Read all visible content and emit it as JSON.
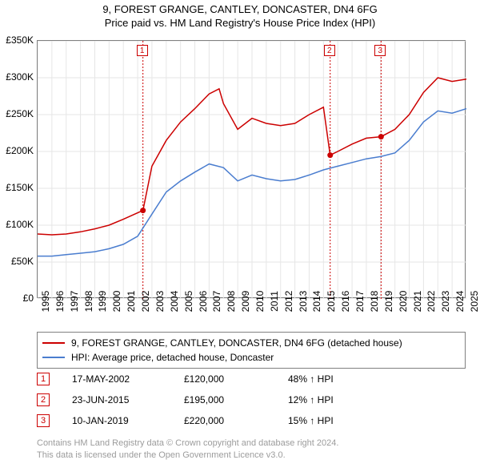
{
  "title": "9, FOREST GRANGE, CANTLEY, DONCASTER, DN4 6FG",
  "subtitle": "Price paid vs. HM Land Registry's House Price Index (HPI)",
  "chart": {
    "type": "line",
    "background_color": "#ffffff",
    "grid_color": "#e6e6e6",
    "axis_color": "#808080",
    "label_fontsize": 12,
    "x_start_year": 1995,
    "x_end_year": 2025,
    "x_ticks": [
      1995,
      1996,
      1997,
      1998,
      1999,
      2000,
      2001,
      2002,
      2003,
      2004,
      2005,
      2006,
      2007,
      2008,
      2009,
      2010,
      2011,
      2012,
      2013,
      2014,
      2015,
      2016,
      2017,
      2018,
      2019,
      2020,
      2021,
      2022,
      2023,
      2024,
      2025
    ],
    "y_min": 0,
    "y_max": 350000,
    "y_tick_step": 50000,
    "y_tick_labels": [
      "£0",
      "£50K",
      "£100K",
      "£150K",
      "£200K",
      "£250K",
      "£300K",
      "£350K"
    ],
    "series": [
      {
        "id": "property",
        "label": "9, FOREST GRANGE, CANTLEY, DONCASTER, DN4 6FG (detached house)",
        "color": "#cc0000",
        "points": [
          [
            1995,
            88000
          ],
          [
            1996,
            87000
          ],
          [
            1997,
            88000
          ],
          [
            1998,
            91000
          ],
          [
            1999,
            95000
          ],
          [
            2000,
            100000
          ],
          [
            2001,
            108000
          ],
          [
            2002.37,
            120000
          ],
          [
            2003,
            180000
          ],
          [
            2004,
            215000
          ],
          [
            2005,
            240000
          ],
          [
            2006,
            258000
          ],
          [
            2007,
            278000
          ],
          [
            2007.7,
            285000
          ],
          [
            2008,
            265000
          ],
          [
            2009,
            230000
          ],
          [
            2010,
            245000
          ],
          [
            2011,
            238000
          ],
          [
            2012,
            235000
          ],
          [
            2013,
            238000
          ],
          [
            2014,
            250000
          ],
          [
            2015,
            260000
          ],
          [
            2015.47,
            195000
          ],
          [
            2016,
            200000
          ],
          [
            2017,
            210000
          ],
          [
            2018,
            218000
          ],
          [
            2019.03,
            220000
          ],
          [
            2020,
            230000
          ],
          [
            2021,
            250000
          ],
          [
            2022,
            280000
          ],
          [
            2023,
            300000
          ],
          [
            2024,
            295000
          ],
          [
            2025,
            298000
          ]
        ]
      },
      {
        "id": "hpi",
        "label": "HPI: Average price, detached house, Doncaster",
        "color": "#4a7dcf",
        "points": [
          [
            1995,
            58000
          ],
          [
            1996,
            58000
          ],
          [
            1997,
            60000
          ],
          [
            1998,
            62000
          ],
          [
            1999,
            64000
          ],
          [
            2000,
            68000
          ],
          [
            2001,
            74000
          ],
          [
            2002,
            85000
          ],
          [
            2003,
            115000
          ],
          [
            2004,
            145000
          ],
          [
            2005,
            160000
          ],
          [
            2006,
            172000
          ],
          [
            2007,
            183000
          ],
          [
            2008,
            178000
          ],
          [
            2009,
            160000
          ],
          [
            2010,
            168000
          ],
          [
            2011,
            163000
          ],
          [
            2012,
            160000
          ],
          [
            2013,
            162000
          ],
          [
            2014,
            168000
          ],
          [
            2015,
            175000
          ],
          [
            2016,
            180000
          ],
          [
            2017,
            185000
          ],
          [
            2018,
            190000
          ],
          [
            2019,
            193000
          ],
          [
            2020,
            198000
          ],
          [
            2021,
            215000
          ],
          [
            2022,
            240000
          ],
          [
            2023,
            255000
          ],
          [
            2024,
            252000
          ],
          [
            2025,
            258000
          ]
        ]
      }
    ],
    "sales": [
      {
        "n": "1",
        "year": 2002.37,
        "price": 120000,
        "date": "17-MAY-2002",
        "price_label": "£120,000",
        "delta": "48% ↑ HPI"
      },
      {
        "n": "2",
        "year": 2015.47,
        "price": 195000,
        "date": "23-JUN-2015",
        "price_label": "£195,000",
        "delta": "12% ↑ HPI"
      },
      {
        "n": "3",
        "year": 2019.03,
        "price": 220000,
        "date": "10-JAN-2019",
        "price_label": "£220,000",
        "delta": "15% ↑ HPI"
      }
    ],
    "marker_color": "#cc0000"
  },
  "footnote_line1": "Contains HM Land Registry data © Crown copyright and database right 2024.",
  "footnote_line2": "This data is licensed under the Open Government Licence v3.0."
}
